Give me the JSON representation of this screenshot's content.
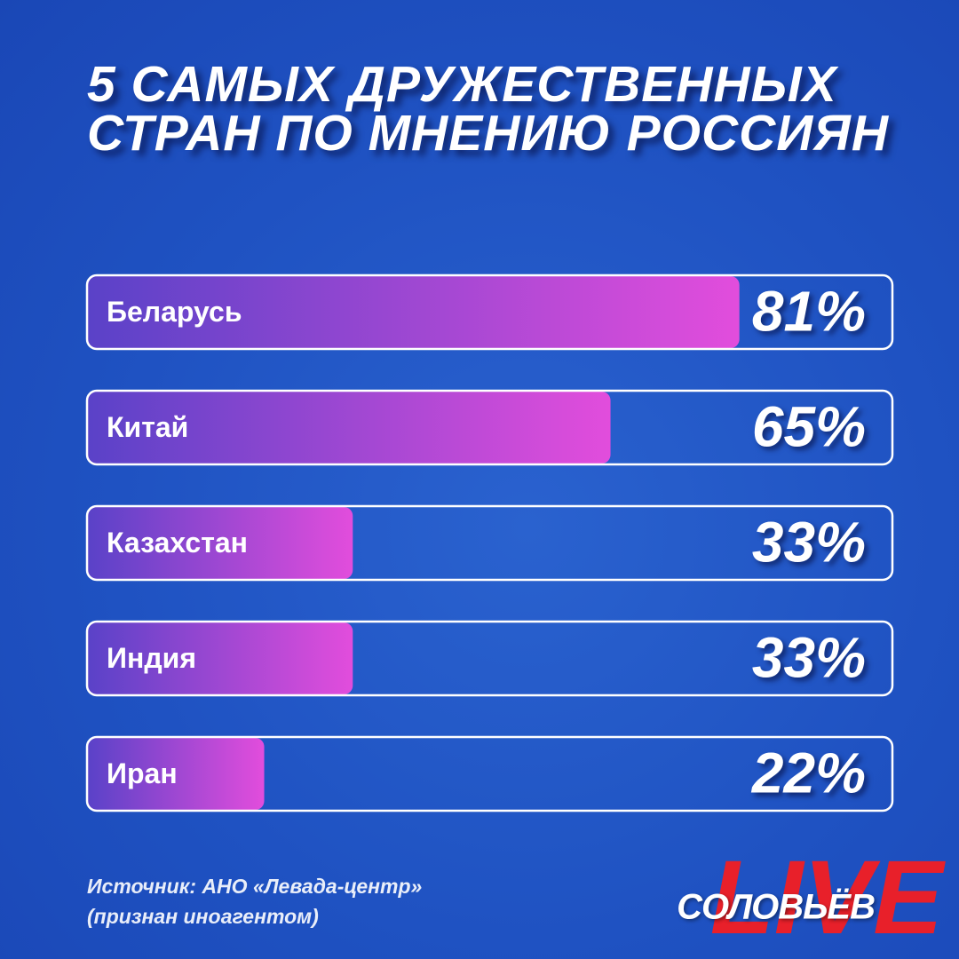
{
  "chart_data": {
    "type": "bar",
    "orientation": "horizontal",
    "title": "5 САМЫХ ДРУЖЕСТВЕННЫХ СТРАН ПО МНЕНИЮ РОССИЯН",
    "categories": [
      "Беларусь",
      "Китай",
      "Казахстан",
      "Индия",
      "Иран"
    ],
    "values": [
      81,
      65,
      33,
      33,
      22
    ],
    "value_labels": [
      "81%",
      "65%",
      "33%",
      "33%",
      "22%"
    ],
    "xlim": [
      0,
      100
    ],
    "color": [
      "#5a42c8",
      "#e24ddc"
    ],
    "source": [
      "Источник: АНО «Левада-центр»",
      "(признан иноагентом)"
    ]
  },
  "brand": {
    "name": "СОЛОВЬЁВ",
    "live": "LIVE"
  }
}
